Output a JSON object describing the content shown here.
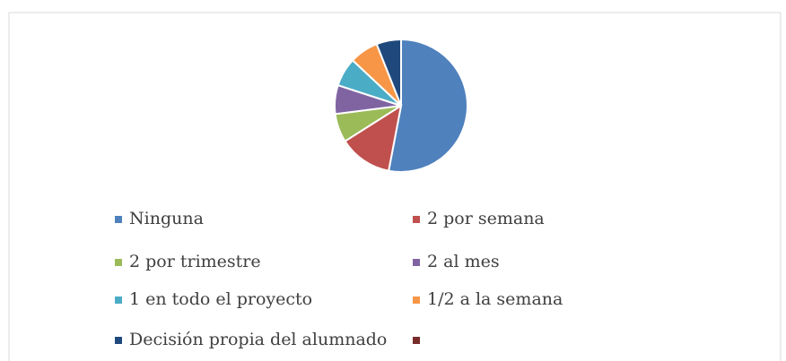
{
  "chart_data": {
    "type": "pie",
    "categories": [
      "Ninguna",
      "2 por semana",
      "2 por trimestre",
      "2 al mes",
      "1 en todo el proyecto",
      "1/2 a la semana",
      "Decisión propia del alumnado",
      null
    ],
    "values": [
      53,
      13,
      7,
      7,
      7,
      7,
      6,
      0
    ],
    "colors": [
      "#4f81bd",
      "#c0504d",
      "#9bbb59",
      "#8064a2",
      "#4bacc6",
      "#f79646",
      "#1f497d",
      "#772c2a"
    ],
    "legend": "bottom"
  }
}
